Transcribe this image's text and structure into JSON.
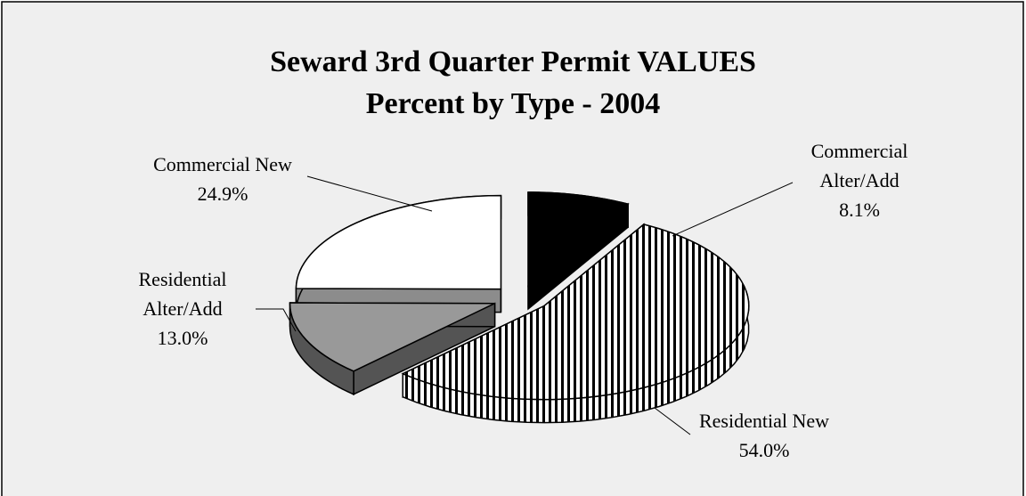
{
  "chart_data": {
    "type": "pie3d",
    "title": "Seward 3rd Quarter Permit VALUES",
    "subtitle": "Percent by Type - 2004",
    "categories": [
      "Commercial Alter/Add",
      "Residential New",
      "Residential Alter/Add",
      "Commercial New"
    ],
    "values": [
      8.1,
      54.0,
      13.0,
      24.9
    ],
    "value_labels": [
      "8.1%",
      "54.0%",
      "13.0%",
      "24.9%"
    ],
    "colors": [
      "#000000",
      "#000000",
      "#999999",
      "#ffffff"
    ],
    "patterns": [
      "solid",
      "vertical-stripes",
      "solid",
      "solid"
    ]
  }
}
